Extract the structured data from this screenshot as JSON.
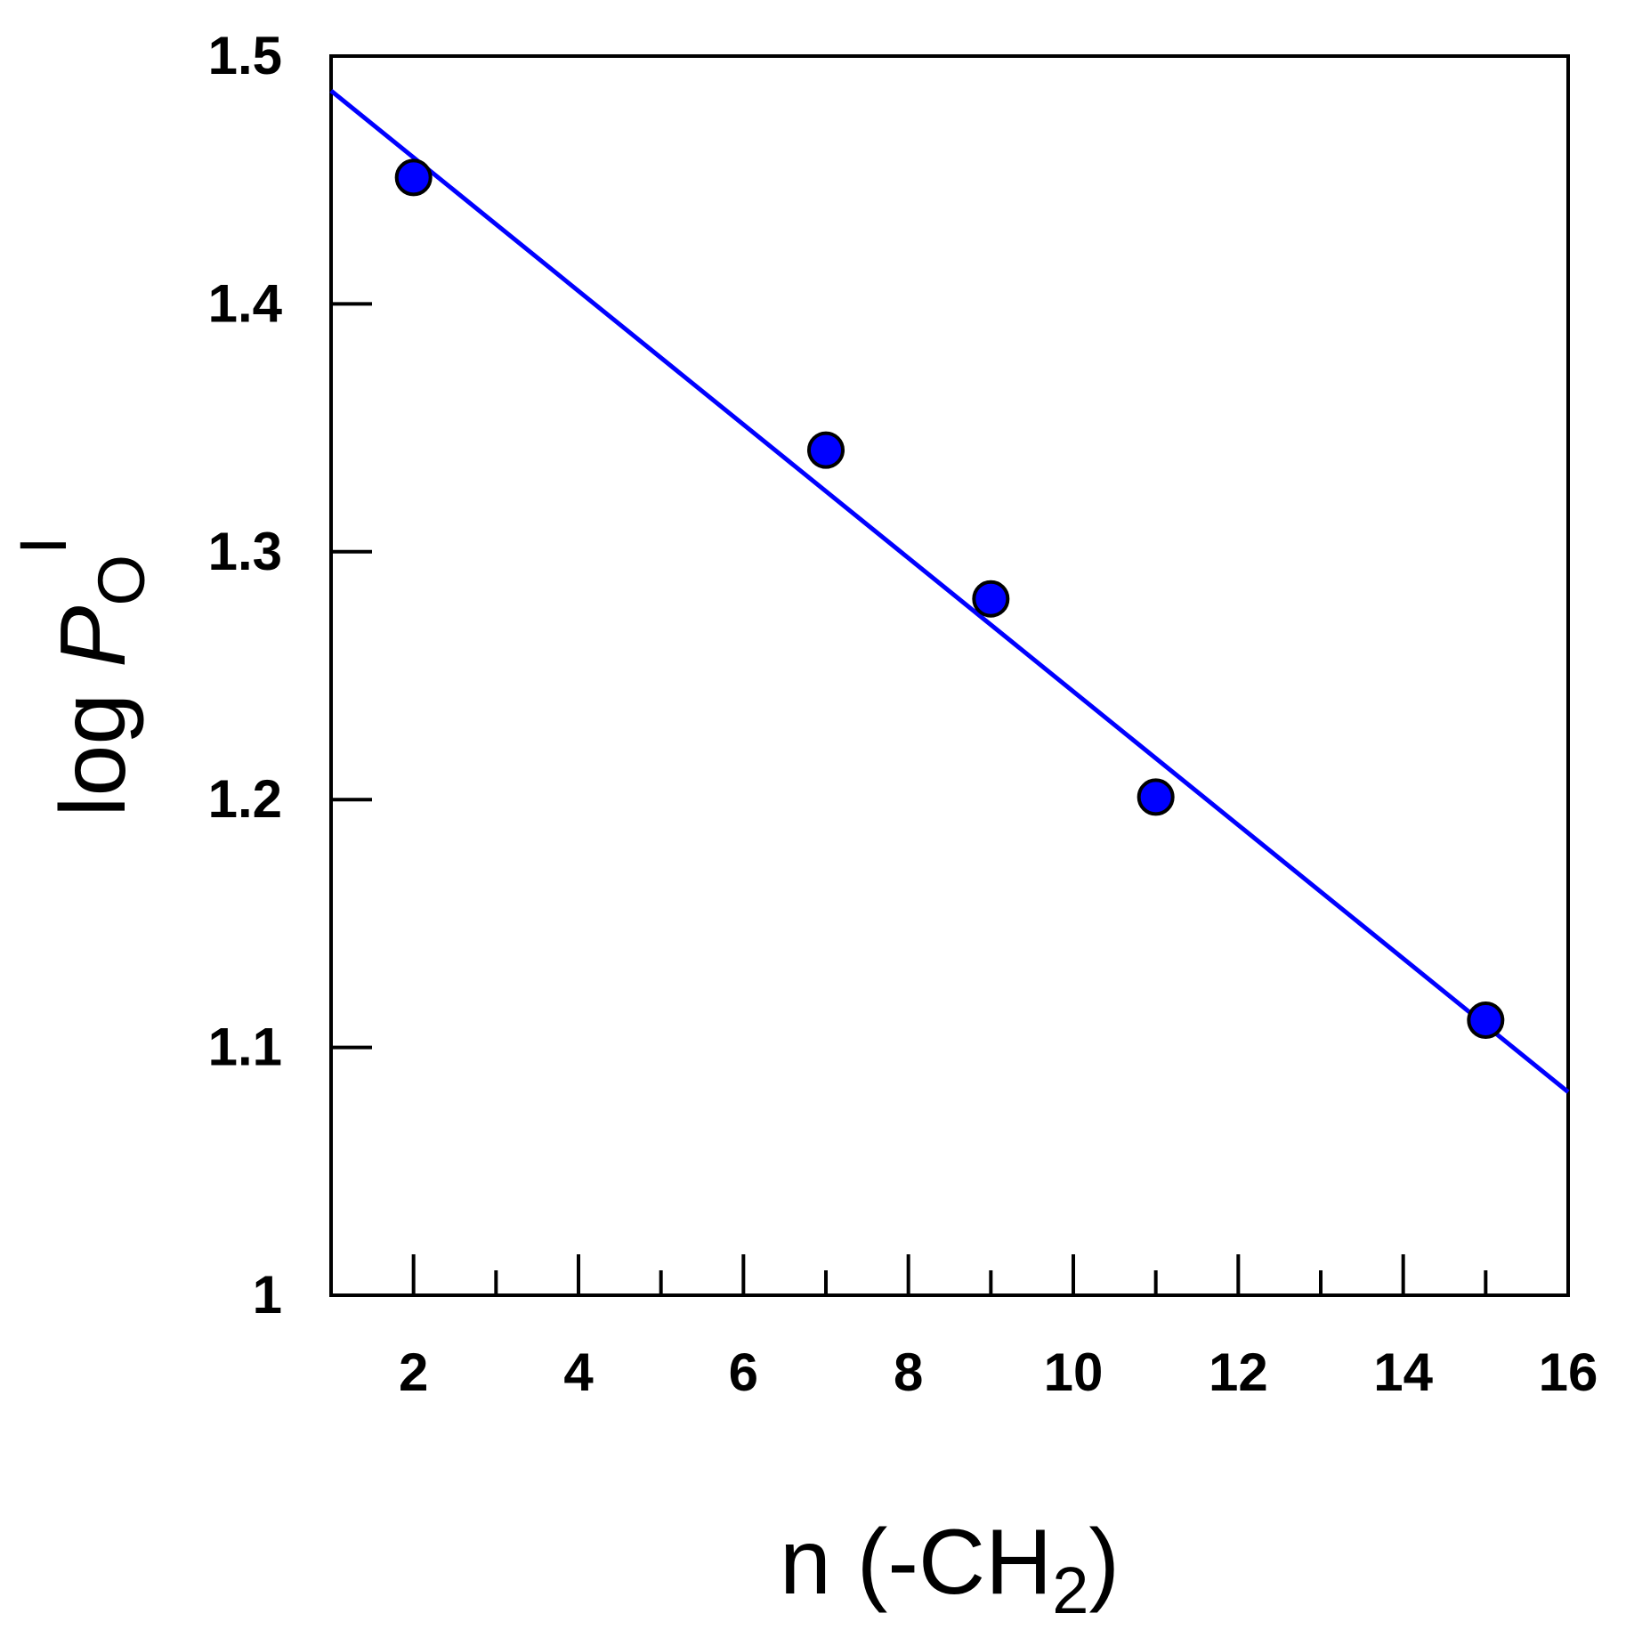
{
  "chart_data": {
    "type": "scatter",
    "title": "",
    "xlabel": {
      "main": "n (-CH",
      "sub": "2",
      "end": ")"
    },
    "ylabel": {
      "main": "log ",
      "italic": "P",
      "sub": "O",
      "sup": "I"
    },
    "xlim": [
      1,
      16
    ],
    "ylim": [
      1.0,
      1.5
    ],
    "x_ticks": [
      2,
      4,
      6,
      8,
      10,
      12,
      14,
      16
    ],
    "x_tick_labels": [
      "2",
      "4",
      "6",
      "8",
      "10",
      "12",
      "14",
      "16"
    ],
    "x_minor_ticks": [
      3,
      5,
      7,
      9,
      11,
      13,
      15
    ],
    "y_ticks": [
      1.0,
      1.1,
      1.2,
      1.3,
      1.4,
      1.5
    ],
    "y_tick_labels": [
      "1",
      "1.1",
      "1.2",
      "1.3",
      "1.4",
      "1.5"
    ],
    "grid": false,
    "series": [
      {
        "x": [
          2,
          7,
          9,
          11,
          15
        ],
        "y": [
          1.451,
          1.341,
          1.281,
          1.201,
          1.111
        ],
        "marker": "circle",
        "color": "#0000ff",
        "edge_color": "#000000"
      }
    ],
    "fit_line": {
      "x": [
        1,
        16
      ],
      "y": [
        1.486,
        1.082
      ],
      "color": "#0000ff"
    }
  }
}
